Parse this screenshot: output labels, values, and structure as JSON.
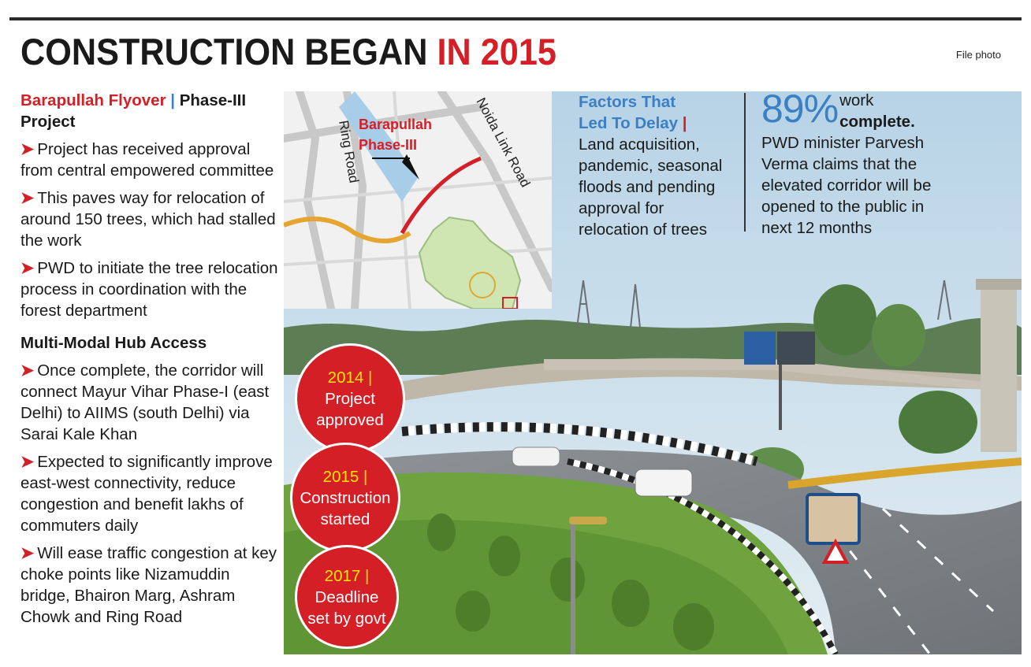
{
  "credit": "File photo",
  "headline": {
    "part1": "CONSTRUCTION BEGAN ",
    "part2": "IN 2015"
  },
  "left": {
    "title_red": "Barapullah Flyover",
    "title_sep": "|",
    "title_rest": "Phase-III",
    "title_line2": "Project",
    "points": [
      "Project has received approval from central empowered committee",
      "This paves way for relocation of around 150 trees, which had stalled the work",
      "PWD to initiate the tree relocation process in coordination with the forest department"
    ],
    "hub_heading": "Multi-Modal Hub Access",
    "hub_points": [
      "Once complete, the corridor will connect Mayur Vihar Phase-I (east Delhi) to AIIMS (south Delhi) via Sarai Kale Khan",
      "Expected to significantly improve east-west connectivity, reduce congestion and benefit lakhs of commuters daily",
      "Will ease traffic congestion at key choke points like Nizamuddin bridge, Bhairon Marg, Ashram Chowk and Ring Road"
    ]
  },
  "map": {
    "label1": "Barapullah",
    "label2": "Phase-III",
    "ring_road": "Ring Road",
    "noida_link": "Noida Link Road"
  },
  "factors": {
    "heading1": "Factors That",
    "heading2": "Led To Delay",
    "sep": "|",
    "text": "Land acquisition, pandemic, seasonal floods and pending approval for relocation of trees"
  },
  "progress": {
    "percent": "89%",
    "label1": "work",
    "label2": "complete.",
    "text": "PWD minister Parvesh Verma claims that the elevated corridor will be opened to the public in next 12 months"
  },
  "timeline": [
    {
      "year": "2014 |",
      "line1": "Project",
      "line2": "approved"
    },
    {
      "year": "2015 |",
      "line1": "Construction",
      "line2": "started"
    },
    {
      "year": "2017 |",
      "line1": "Deadline",
      "line2": "set by govt"
    }
  ],
  "colors": {
    "accent_red": "#d51f26",
    "accent_blue": "#3b7fc4",
    "year_yellow": "#ffe600"
  }
}
